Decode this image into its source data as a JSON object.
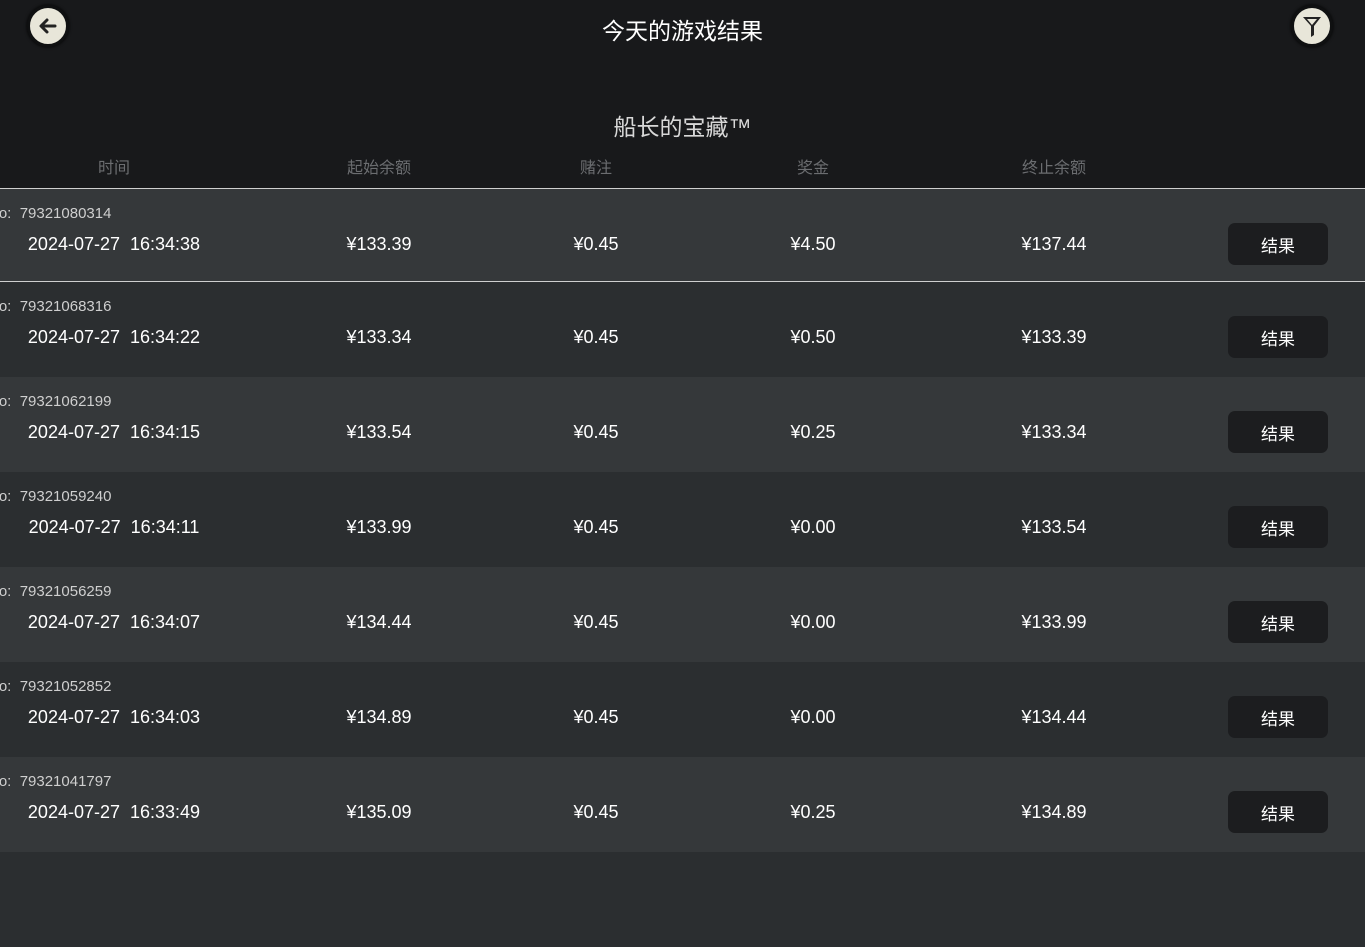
{
  "header": {
    "title": "今天的游戏结果",
    "back_icon": "arrow-left-icon",
    "filter_icon": "filter-funnel-icon"
  },
  "game_name": "船长的宝藏™",
  "columns": [
    "时间",
    "起始余额",
    "赌注",
    "奖金",
    "终止余额"
  ],
  "id_label": "No:",
  "result_label": "结果",
  "rows": [
    {
      "id": "79321080314",
      "time": "2024-07-27  16:34:38",
      "start": "¥133.39",
      "bet": "¥0.45",
      "win": "¥4.50",
      "end": "¥137.44"
    },
    {
      "id": "79321068316",
      "time": "2024-07-27  16:34:22",
      "start": "¥133.34",
      "bet": "¥0.45",
      "win": "¥0.50",
      "end": "¥133.39"
    },
    {
      "id": "79321062199",
      "time": "2024-07-27  16:34:15",
      "start": "¥133.54",
      "bet": "¥0.45",
      "win": "¥0.25",
      "end": "¥133.34"
    },
    {
      "id": "79321059240",
      "time": "2024-07-27  16:34:11",
      "start": "¥133.99",
      "bet": "¥0.45",
      "win": "¥0.00",
      "end": "¥133.54"
    },
    {
      "id": "79321056259",
      "time": "2024-07-27  16:34:07",
      "start": "¥134.44",
      "bet": "¥0.45",
      "win": "¥0.00",
      "end": "¥133.99"
    },
    {
      "id": "79321052852",
      "time": "2024-07-27  16:34:03",
      "start": "¥134.89",
      "bet": "¥0.45",
      "win": "¥0.00",
      "end": "¥134.44"
    },
    {
      "id": "79321041797",
      "time": "2024-07-27  16:33:49",
      "start": "¥135.09",
      "bet": "¥0.45",
      "win": "¥0.25",
      "end": "¥134.89"
    }
  ]
}
